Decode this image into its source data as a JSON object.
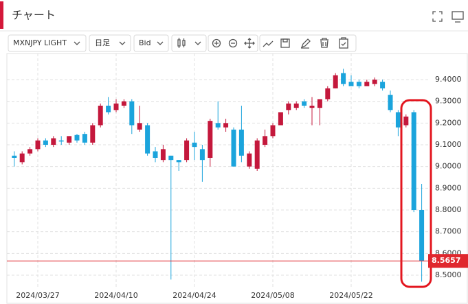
{
  "header": {
    "title": "チャート"
  },
  "toolbar": {
    "symbol": "MXNJPY LIGHT",
    "interval": "日足",
    "price_type": "Bid"
  },
  "chart_data": {
    "type": "candlestick",
    "categories": [
      null,
      null,
      null,
      "2024/03/27",
      null,
      null,
      null,
      null,
      null,
      null,
      null,
      null,
      null,
      "2024/04/10",
      null,
      null,
      null,
      null,
      null,
      null,
      null,
      null,
      null,
      "2024/04/24",
      null,
      null,
      null,
      null,
      null,
      null,
      null,
      null,
      null,
      "2024/05/08",
      null,
      null,
      null,
      null,
      null,
      null,
      null,
      null,
      null,
      "2024/05/22",
      null,
      null,
      null,
      null,
      null,
      null,
      null,
      null,
      null
    ],
    "open": [
      9.05,
      9.02,
      9.06,
      9.08,
      9.12,
      9.1,
      9.12,
      9.11,
      9.145,
      9.15,
      9.11,
      9.19,
      9.28,
      9.26,
      9.28,
      9.3,
      9.17,
      9.19,
      9.07,
      9.03,
      9.05,
      9.03,
      9.03,
      9.11,
      9.08,
      9.04,
      9.2,
      9.18,
      9.17,
      9.17,
      9.0,
      8.99,
      9.1,
      9.14,
      9.19,
      9.26,
      9.27,
      9.3,
      9.27,
      9.27,
      9.31,
      9.36,
      9.43,
      9.39,
      9.39,
      9.37,
      9.38,
      9.39,
      9.33,
      9.25,
      9.19,
      9.25,
      8.8
    ],
    "high": [
      9.07,
      9.07,
      9.09,
      9.13,
      9.13,
      9.14,
      9.14,
      9.14,
      9.15,
      9.16,
      9.2,
      9.29,
      9.32,
      9.31,
      9.31,
      9.31,
      9.28,
      9.2,
      9.09,
      9.1,
      9.05,
      9.03,
      9.13,
      9.16,
      9.1,
      9.22,
      9.3,
      9.22,
      9.18,
      9.28,
      9.07,
      9.13,
      9.17,
      9.2,
      9.25,
      9.3,
      9.3,
      9.31,
      9.32,
      9.31,
      9.37,
      9.43,
      9.45,
      9.42,
      9.4,
      9.4,
      9.41,
      9.4,
      9.35,
      9.26,
      9.24,
      9.26,
      8.92
    ],
    "low": [
      9.0,
      9.01,
      9.05,
      9.07,
      9.09,
      9.09,
      9.1,
      9.1,
      9.11,
      9.1,
      9.1,
      9.18,
      9.24,
      9.25,
      9.27,
      9.15,
      9.16,
      9.05,
      9.02,
      9.02,
      8.48,
      8.98,
      9.02,
      9.03,
      8.93,
      9.0,
      9.17,
      9.16,
      9.0,
      9.02,
      8.99,
      8.98,
      9.09,
      9.13,
      9.19,
      9.24,
      9.26,
      9.27,
      9.19,
      9.19,
      9.3,
      9.36,
      9.37,
      9.37,
      9.36,
      9.37,
      9.37,
      9.35,
      9.25,
      9.14,
      9.18,
      8.79,
      8.47
    ],
    "close": [
      9.04,
      9.06,
      9.08,
      9.12,
      9.1,
      9.13,
      9.115,
      9.14,
      9.12,
      9.11,
      9.19,
      9.28,
      9.25,
      9.29,
      9.3,
      9.19,
      9.2,
      9.06,
      9.04,
      9.08,
      9.03,
      9.02,
      9.12,
      9.09,
      9.03,
      9.21,
      9.18,
      9.2,
      9.0,
      9.05,
      9.06,
      9.12,
      9.14,
      9.19,
      9.25,
      9.29,
      9.29,
      9.28,
      9.28,
      9.31,
      9.36,
      9.42,
      9.38,
      9.37,
      9.37,
      9.39,
      9.4,
      9.36,
      9.26,
      9.18,
      9.23,
      8.8,
      8.5657
    ],
    "up_color": "#c4183c",
    "down_color": "#1ba4dc",
    "ylim": [
      8.44,
      9.52
    ],
    "yticks": [
      {
        "value": 8.5,
        "label": "8.5000"
      },
      {
        "value": 8.6,
        "label": "8.6000"
      },
      {
        "value": 8.7,
        "label": "8.7000"
      },
      {
        "value": 8.8,
        "label": "8.8000"
      },
      {
        "value": 8.9,
        "label": "8.9000"
      },
      {
        "value": 9.0,
        "label": "9.0000"
      },
      {
        "value": 9.1,
        "label": "9.1000"
      },
      {
        "value": 9.2,
        "label": "9.2000"
      },
      {
        "value": 9.3,
        "label": "9.3000"
      },
      {
        "value": 9.4,
        "label": "9.4000"
      }
    ],
    "grid": true,
    "current_price": 8.5657,
    "current_price_color": "#e0282e"
  }
}
